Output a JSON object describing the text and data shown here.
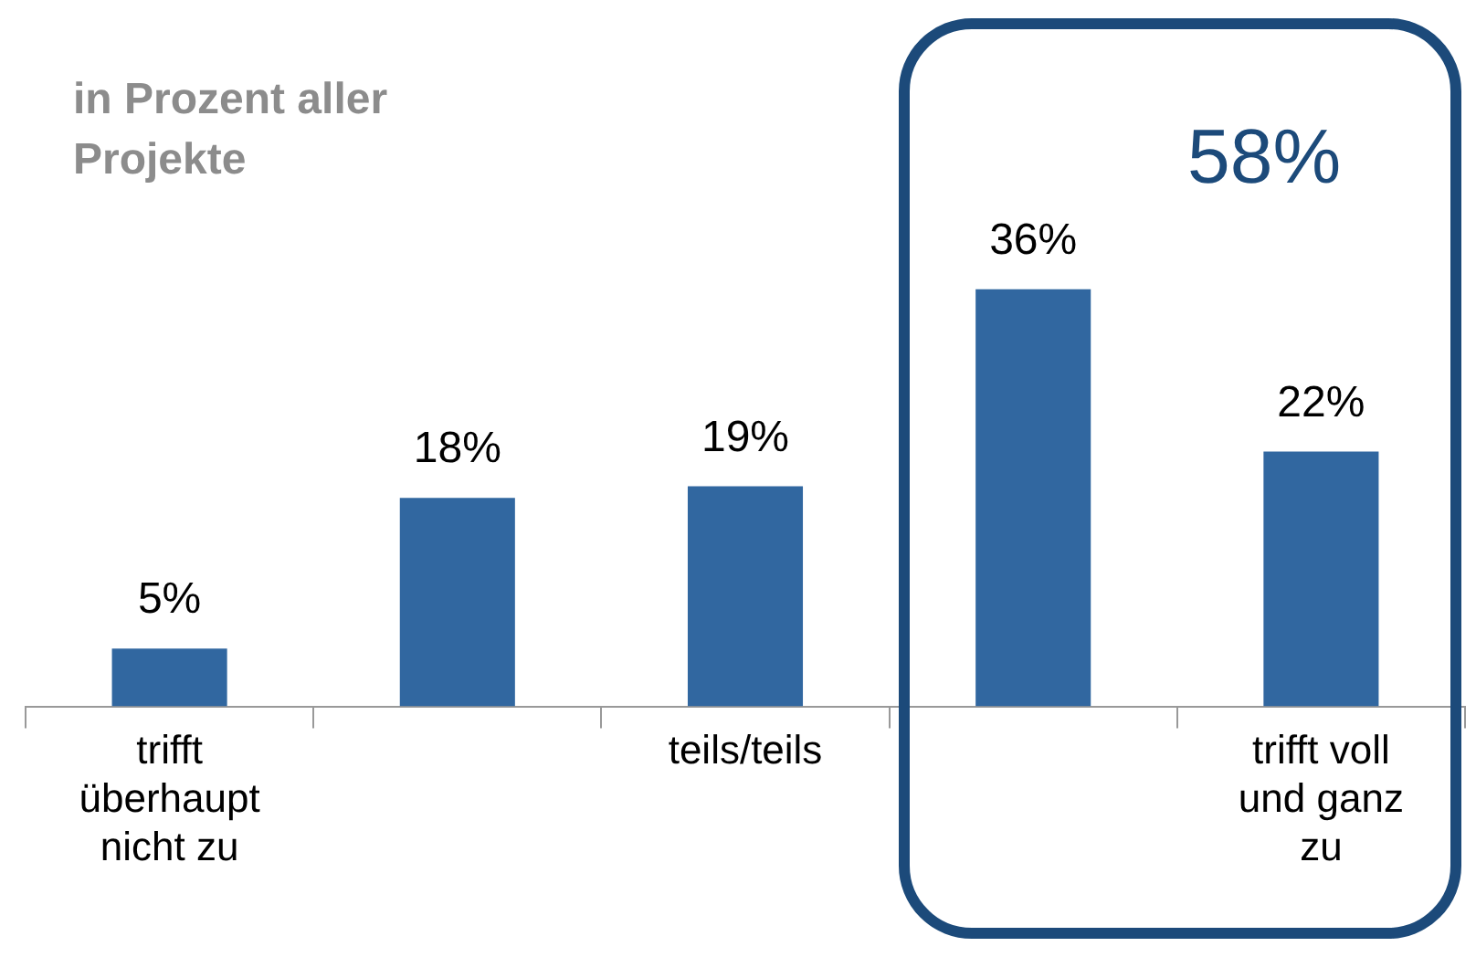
{
  "chart_data": {
    "type": "bar",
    "subtitle": "in Prozent aller Projekte",
    "categories": [
      "trifft überhaupt nicht zu",
      null,
      "teils/teils",
      null,
      "trifft voll und ganz zu"
    ],
    "values": [
      5,
      18,
      19,
      36,
      22
    ],
    "value_labels": [
      "5%",
      "18%",
      "19%",
      "36%",
      "22%"
    ],
    "color": "#3167a0",
    "annotations": [
      "58%"
    ],
    "grid": false,
    "legend": false
  }
}
